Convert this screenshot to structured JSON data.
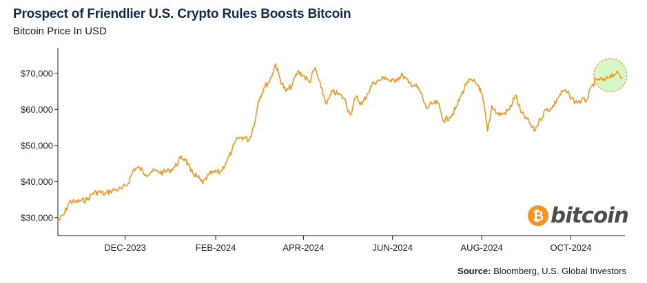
{
  "header": {
    "title": "Prospect of Friendlier U.S. Crypto Rules Boosts Bitcoin",
    "subtitle": "Bitcoin Price In USD"
  },
  "footer": {
    "source_label": "Source:",
    "source_text": "Bloomberg, U.S. Global Investors"
  },
  "logo": {
    "symbol": "₿",
    "wordmark": "bitcoin",
    "color": "#f7931a"
  },
  "colors": {
    "line": "#f7931a",
    "highlight_fill": "#c8f5b4",
    "highlight_stroke": "#f0a050",
    "title": "#13294b"
  },
  "chart_data": {
    "type": "line",
    "title": "Prospect of Friendlier U.S. Crypto Rules Boosts Bitcoin",
    "subtitle": "Bitcoin Price In USD",
    "x_range": [
      "2023-10-16",
      "2024-11-07"
    ],
    "ylim": [
      25000,
      77000
    ],
    "y_ticks": [
      30000,
      40000,
      50000,
      60000,
      70000
    ],
    "y_tick_labels": [
      "$30,000",
      "$40,000",
      "$50,000",
      "$60,000",
      "$70,000"
    ],
    "x_ticks": [
      "2023-12-01",
      "2024-02-01",
      "2024-04-01",
      "2024-06-01",
      "2024-08-01",
      "2024-10-01"
    ],
    "x_tick_labels": [
      "DEC-2023",
      "FEB-2024",
      "APR-2024",
      "JUN-2024",
      "AUG-2024",
      "OCT-2024"
    ],
    "grid": false,
    "highlight": {
      "date": "2024-10-28",
      "value": 69500,
      "note": "circled recent high"
    },
    "series": [
      {
        "x": [
          "2023-10-16",
          "2023-10-20",
          "2023-10-24",
          "2023-10-28",
          "2023-11-01",
          "2023-11-05",
          "2023-11-09",
          "2023-11-13",
          "2023-11-17",
          "2023-11-21",
          "2023-11-25",
          "2023-11-29",
          "2023-12-03",
          "2023-12-07",
          "2023-12-11",
          "2023-12-15",
          "2023-12-19",
          "2023-12-23",
          "2023-12-27",
          "2023-12-31",
          "2024-01-04",
          "2024-01-08",
          "2024-01-11",
          "2024-01-15",
          "2024-01-19",
          "2024-01-23",
          "2024-01-27",
          "2024-01-31",
          "2024-02-04",
          "2024-02-08",
          "2024-02-12",
          "2024-02-16",
          "2024-02-20",
          "2024-02-24",
          "2024-02-28",
          "2024-03-01",
          "2024-03-05",
          "2024-03-09",
          "2024-03-13",
          "2024-03-16",
          "2024-03-20",
          "2024-03-24",
          "2024-03-28",
          "2024-04-01",
          "2024-04-05",
          "2024-04-09",
          "2024-04-13",
          "2024-04-17",
          "2024-04-21",
          "2024-04-25",
          "2024-04-29",
          "2024-05-03",
          "2024-05-07",
          "2024-05-11",
          "2024-05-15",
          "2024-05-19",
          "2024-05-23",
          "2024-05-27",
          "2024-05-31",
          "2024-06-04",
          "2024-06-08",
          "2024-06-12",
          "2024-06-16",
          "2024-06-20",
          "2024-06-24",
          "2024-06-28",
          "2024-07-02",
          "2024-07-06",
          "2024-07-10",
          "2024-07-14",
          "2024-07-18",
          "2024-07-22",
          "2024-07-26",
          "2024-07-30",
          "2024-08-02",
          "2024-08-05",
          "2024-08-08",
          "2024-08-12",
          "2024-08-16",
          "2024-08-20",
          "2024-08-24",
          "2024-08-28",
          "2024-09-01",
          "2024-09-06",
          "2024-09-10",
          "2024-09-14",
          "2024-09-18",
          "2024-09-22",
          "2024-09-26",
          "2024-09-30",
          "2024-10-04",
          "2024-10-08",
          "2024-10-12",
          "2024-10-16",
          "2024-10-20",
          "2024-10-24",
          "2024-10-28",
          "2024-11-01",
          "2024-11-05"
        ],
        "y": [
          29000,
          30800,
          34500,
          34300,
          34700,
          35000,
          36800,
          37100,
          36500,
          37400,
          37800,
          38000,
          39500,
          43500,
          43700,
          42000,
          42800,
          42800,
          42500,
          43000,
          44000,
          46500,
          46300,
          42800,
          41500,
          39500,
          41800,
          42500,
          42600,
          45200,
          48500,
          52000,
          52300,
          51500,
          57000,
          62300,
          66000,
          68000,
          72600,
          68500,
          65000,
          66500,
          70500,
          69500,
          67500,
          71500,
          66000,
          61500,
          65000,
          64200,
          63000,
          58500,
          63500,
          61300,
          64500,
          67500,
          68000,
          69000,
          67600,
          68500,
          69500,
          67300,
          66800,
          64900,
          60300,
          61500,
          61800,
          56800,
          57900,
          60000,
          64000,
          67700,
          67800,
          66500,
          62500,
          54000,
          61000,
          58600,
          58800,
          60000,
          64000,
          59000,
          57300,
          54000,
          57300,
          60000,
          60300,
          63200,
          65200,
          64000,
          62000,
          62400,
          62700,
          67000,
          68400,
          67900,
          69500,
          70000,
          68800
        ]
      }
    ]
  }
}
